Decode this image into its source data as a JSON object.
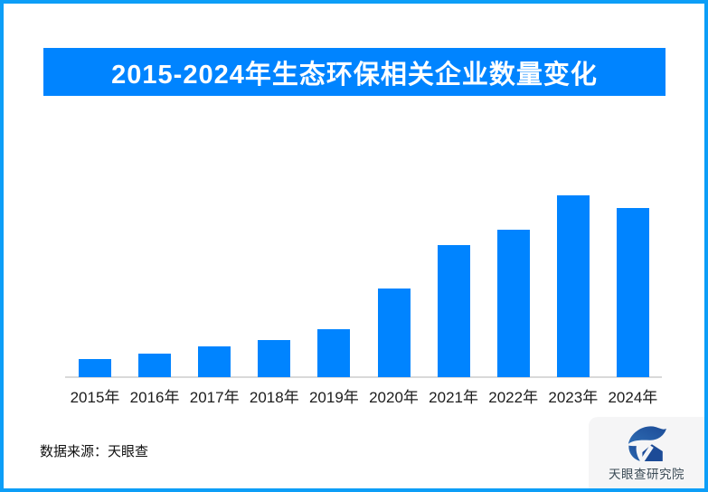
{
  "page": {
    "background": "#ffffff",
    "border_color": "#0d9ef7"
  },
  "header": {
    "title": "2015-2024年生态环保相关企业数量变化",
    "banner_color": "#0084ff",
    "text_color": "#ffffff"
  },
  "chart_data": {
    "type": "bar",
    "title": "2015-2024年生态环保相关企业数量变化",
    "categories": [
      "2015年",
      "2016年",
      "2017年",
      "2018年",
      "2019年",
      "2020年",
      "2021年",
      "2022年",
      "2023年",
      "2024年"
    ],
    "values": [
      10,
      12.9,
      16.9,
      20.4,
      26.4,
      48.8,
      72.6,
      81.2,
      100,
      93
    ],
    "value_units": "relative index (no value axis or data labels shown in chart; 2023 peak = 100)",
    "bar_color": "#0084ff",
    "axis_line_color": "#d9d9d9",
    "xlabel": "",
    "ylabel": "",
    "ylim": [
      0,
      105
    ],
    "grid": false,
    "legend": false
  },
  "footer": {
    "source_text": "数据来源：天眼查",
    "logo_text": "天眼查研究院",
    "logo_color": "#1c4b97"
  }
}
